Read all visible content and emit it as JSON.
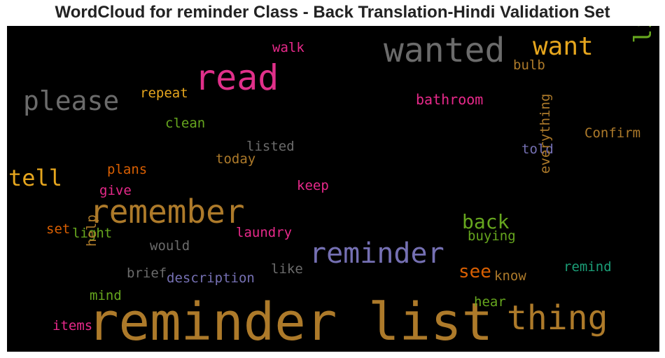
{
  "title": "WordCloud for reminder Class - Back Translation-Hindi Validation Set",
  "chart_data": {
    "type": "wordcloud",
    "title": "WordCloud for reminder Class - Back Translation-Hindi Validation Set",
    "background": "#000000",
    "words": [
      {
        "text": "reminder list",
        "color": "#ad7a2a",
        "vertical": false
      },
      {
        "text": "read",
        "color": "#e0308a",
        "vertical": false
      },
      {
        "text": "wanted",
        "color": "#6b6b6b",
        "vertical": false
      },
      {
        "text": "remember",
        "color": "#ad7a2a",
        "vertical": false
      },
      {
        "text": "reminder",
        "color": "#7570b3",
        "vertical": false
      },
      {
        "text": "thing",
        "color": "#ad7a2a",
        "vertical": false
      },
      {
        "text": "want",
        "color": "#e6a61e",
        "vertical": false
      },
      {
        "text": "please",
        "color": "#6b6b6b",
        "vertical": false
      },
      {
        "text": "list",
        "color": "#66a61e",
        "vertical": true
      },
      {
        "text": "tell",
        "color": "#e6a61e",
        "vertical": false
      },
      {
        "text": "back",
        "color": "#66a61e",
        "vertical": false
      },
      {
        "text": "see",
        "color": "#d95f02",
        "vertical": false
      },
      {
        "text": "walk",
        "color": "#e7298a",
        "vertical": false
      },
      {
        "text": "bulb",
        "color": "#ad7a2a",
        "vertical": false
      },
      {
        "text": "repeat",
        "color": "#e6a61e",
        "vertical": false
      },
      {
        "text": "bathroom",
        "color": "#e7298a",
        "vertical": false
      },
      {
        "text": "clean",
        "color": "#66a61e",
        "vertical": false
      },
      {
        "text": "Confirm",
        "color": "#ad7a2a",
        "vertical": false
      },
      {
        "text": "listed",
        "color": "#6b6b6b",
        "vertical": false
      },
      {
        "text": "told",
        "color": "#7570b3",
        "vertical": false
      },
      {
        "text": "today",
        "color": "#ad7a2a",
        "vertical": false
      },
      {
        "text": "plans",
        "color": "#d95f02",
        "vertical": false
      },
      {
        "text": "give",
        "color": "#e7298a",
        "vertical": false
      },
      {
        "text": "keep",
        "color": "#e7298a",
        "vertical": false
      },
      {
        "text": "everything",
        "color": "#ad7a2a",
        "vertical": true
      },
      {
        "text": "set",
        "color": "#d95f02",
        "vertical": false
      },
      {
        "text": "light",
        "color": "#66a61e",
        "vertical": false
      },
      {
        "text": "laundry",
        "color": "#e7298a",
        "vertical": false
      },
      {
        "text": "buying",
        "color": "#66a61e",
        "vertical": false
      },
      {
        "text": "would",
        "color": "#6b6b6b",
        "vertical": false
      },
      {
        "text": "help",
        "color": "#ad7a2a",
        "vertical": true
      },
      {
        "text": "brief",
        "color": "#6b6b6b",
        "vertical": false
      },
      {
        "text": "description",
        "color": "#7570b3",
        "vertical": false
      },
      {
        "text": "like",
        "color": "#6b6b6b",
        "vertical": false
      },
      {
        "text": "know",
        "color": "#ad7a2a",
        "vertical": false
      },
      {
        "text": "remind",
        "color": "#1b9e77",
        "vertical": false
      },
      {
        "text": "mind",
        "color": "#66a61e",
        "vertical": false
      },
      {
        "text": "hear",
        "color": "#66a61e",
        "vertical": false
      },
      {
        "text": "items",
        "color": "#e7298a",
        "vertical": false
      }
    ]
  }
}
